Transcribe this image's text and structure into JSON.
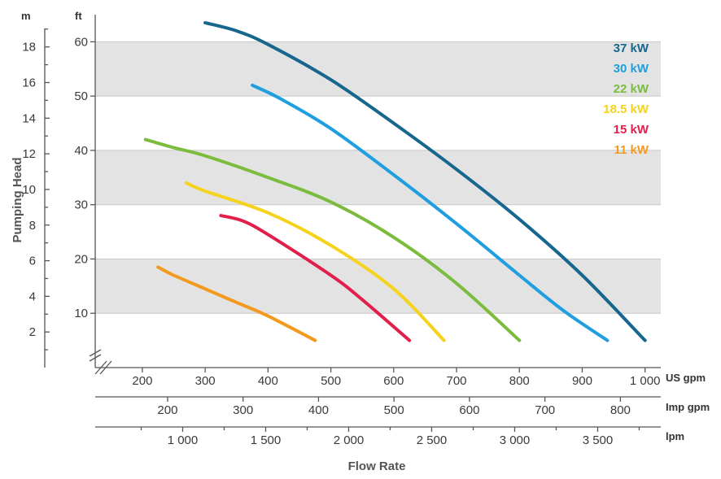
{
  "chart_data": {
    "type": "line",
    "ylabel": "Pumping Head",
    "xlabel": "Flow Rate",
    "y_axes": {
      "m": {
        "label": "m",
        "ticks": [
          "2",
          "4",
          "6",
          "8",
          "10",
          "12",
          "14",
          "16",
          "18"
        ]
      },
      "ft": {
        "label": "ft",
        "ticks": [
          "10",
          "20",
          "30",
          "40",
          "50",
          "60"
        ],
        "ylim": [
          0,
          65
        ]
      }
    },
    "x_axes": {
      "us_gpm": {
        "label": "US gpm",
        "ticks": [
          "200",
          "300",
          "400",
          "500",
          "600",
          "700",
          "800",
          "900",
          "1 000"
        ],
        "xlim": [
          125,
          1025
        ]
      },
      "imp_gpm": {
        "label": "Imp gpm",
        "ticks": [
          "200",
          "300",
          "400",
          "500",
          "600",
          "700",
          "800"
        ]
      },
      "lpm": {
        "label": "lpm",
        "ticks": [
          "1 000",
          "1 500",
          "2 000",
          "2 500",
          "3 000",
          "3 500"
        ]
      }
    },
    "grid": "alternating grey bands every 10 ft",
    "legend_position": "top-right",
    "series": [
      {
        "name": "37 kW",
        "color": "#17668e",
        "x": [
          300,
          350,
          400,
          500,
          600,
          700,
          800,
          900,
          1000
        ],
        "y": [
          63.5,
          62,
          59.5,
          53,
          45,
          36.5,
          27.3,
          17,
          5
        ]
      },
      {
        "name": "30 kW",
        "color": "#1f9ee0",
        "x": [
          375,
          420,
          500,
          600,
          700,
          800,
          870,
          940
        ],
        "y": [
          52,
          49.5,
          44,
          35.5,
          26.5,
          17,
          10.5,
          5
        ]
      },
      {
        "name": "22 kW",
        "color": "#7bbc3f",
        "x": [
          205,
          250,
          300,
          400,
          500,
          600,
          700,
          800
        ],
        "y": [
          42,
          40.5,
          39,
          35,
          30.5,
          24,
          15.5,
          5
        ]
      },
      {
        "name": "18.5 kW",
        "color": "#f5d21b",
        "x": [
          270,
          300,
          400,
          500,
          600,
          680
        ],
        "y": [
          34,
          32.5,
          28.5,
          22.5,
          14.5,
          5
        ]
      },
      {
        "name": "15 kW",
        "color": "#e21e4b",
        "x": [
          325,
          360,
          400,
          500,
          550,
          625
        ],
        "y": [
          28,
          27,
          24.5,
          17,
          12.5,
          5
        ]
      },
      {
        "name": "11 kW",
        "color": "#f39a1e",
        "x": [
          225,
          250,
          300,
          350,
          400,
          475
        ],
        "y": [
          18.5,
          17,
          14.5,
          12,
          9.5,
          5
        ]
      }
    ]
  }
}
